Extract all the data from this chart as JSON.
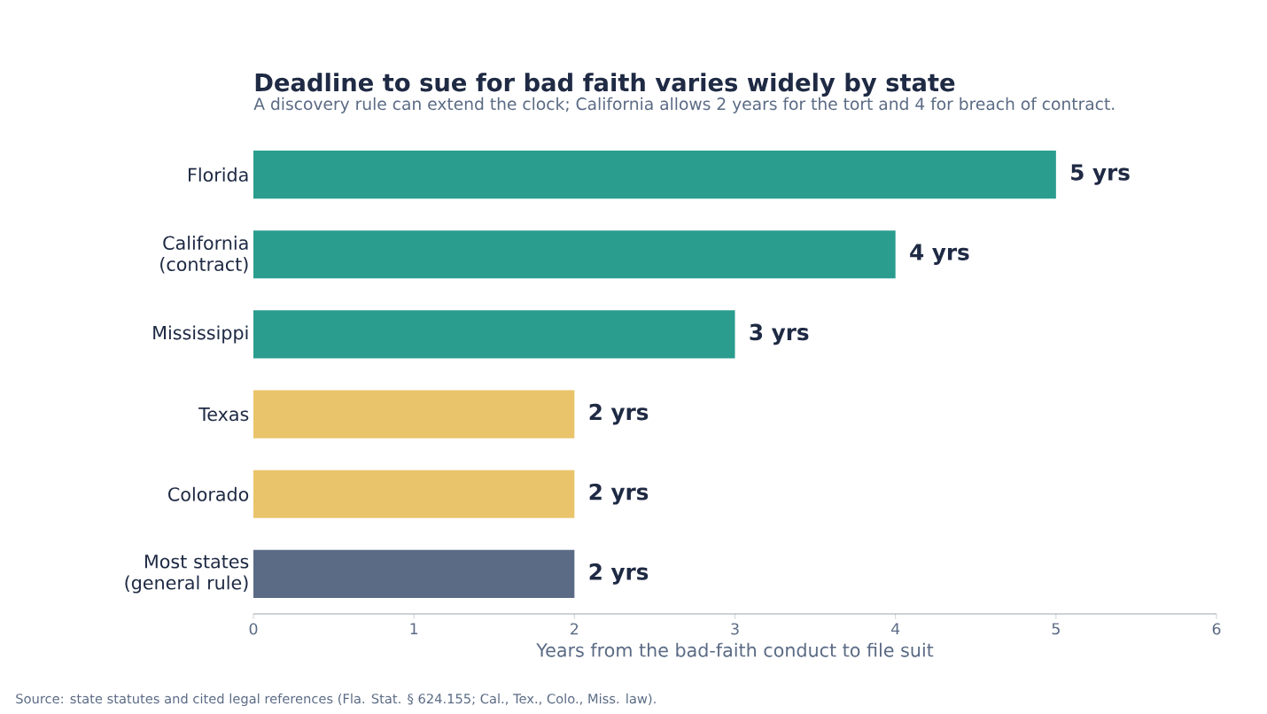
{
  "chart_data": {
    "type": "bar",
    "orientation": "horizontal",
    "title": "Deadline to sue for bad faith varies widely by state",
    "subtitle": "A discovery rule can extend the clock; California allows 2 years for the tort and 4 for breach of contract.",
    "xlabel": "Years from the bad-faith conduct to file suit",
    "annotations": [
      "Source: state statutes and cited legal references (Fla. Stat. § 624.155; Cal., Tex., Colo., Miss. law)."
    ],
    "categories": [
      "Florida",
      "California (contract)",
      "Mississippi",
      "Texas",
      "Colorado",
      "Most states (general rule)"
    ],
    "values": [
      5,
      4,
      3,
      2,
      2,
      2
    ],
    "colors": [
      "#2a9d8f",
      "#2a9d8f",
      "#2a9d8f",
      "#e9c46a",
      "#e9c46a",
      "#5b6b85"
    ],
    "value_labels": [
      "5 yrs",
      "4 yrs",
      "3 yrs",
      "2 yrs",
      "2 yrs",
      "2 yrs"
    ],
    "xlim": [
      0,
      6
    ],
    "xticks": [
      0,
      1,
      2,
      3,
      4,
      5,
      6
    ]
  }
}
